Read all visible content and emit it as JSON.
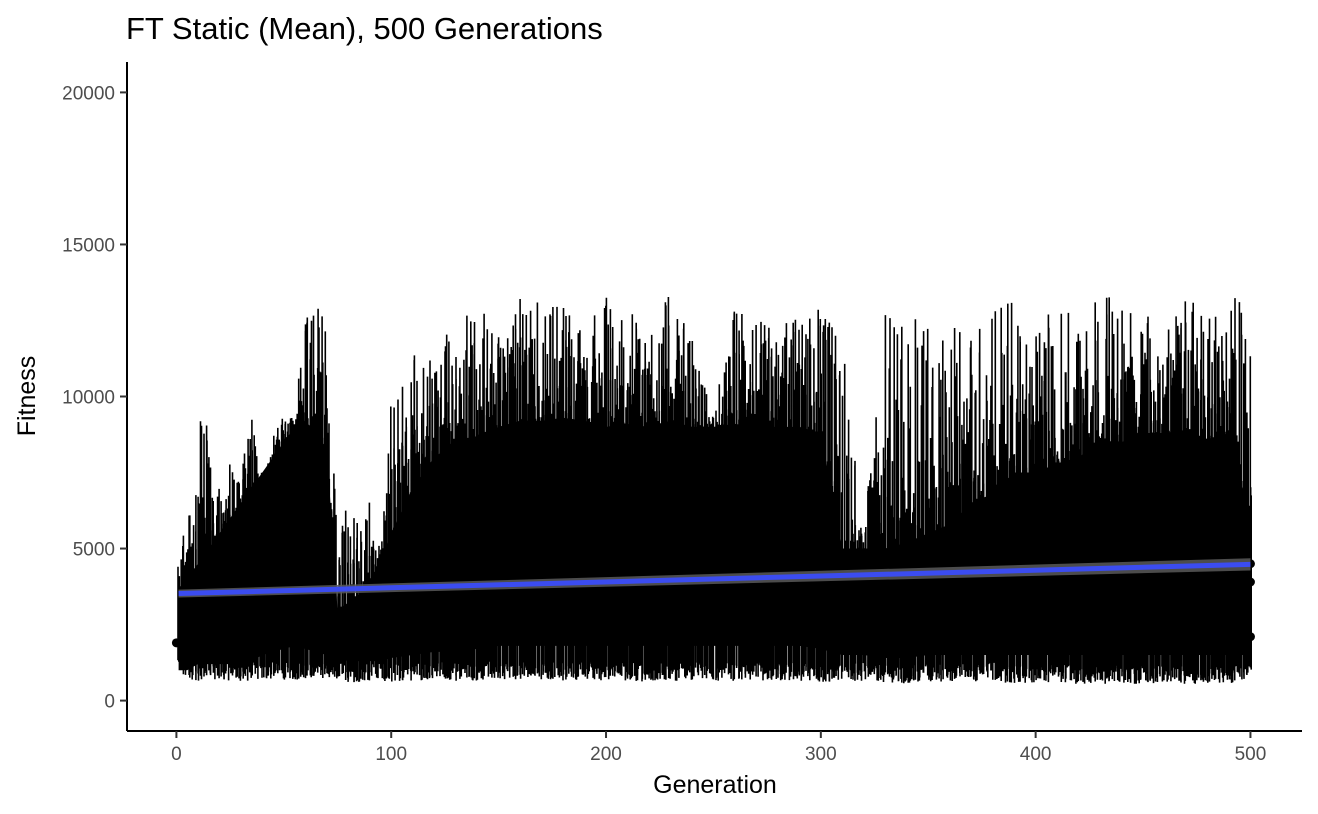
{
  "chart_data": {
    "type": "line",
    "title": "FT Static (Mean), 500 Generations",
    "xlabel": "Generation",
    "ylabel": "Fitness",
    "xlim": [
      -23,
      524
    ],
    "ylim": [
      -1000,
      21000
    ],
    "x_ticks": [
      0,
      100,
      200,
      300,
      400,
      500
    ],
    "y_ticks": [
      0,
      5000,
      10000,
      15000,
      20000
    ],
    "x_tick_labels": [
      "0",
      "100",
      "200",
      "300",
      "400",
      "500"
    ],
    "y_tick_labels": [
      "0",
      "5000",
      "10000",
      "15000",
      "20000"
    ],
    "grid": false,
    "legend": "none",
    "series": [
      {
        "kind": "fitness-range-per-generation",
        "color": "#000000",
        "x": [
          1,
          5,
          10,
          15,
          20,
          25,
          30,
          35,
          40,
          45,
          50,
          55,
          60,
          65,
          70,
          75,
          80,
          85,
          90,
          95,
          100,
          110,
          120,
          130,
          140,
          150,
          160,
          170,
          180,
          190,
          200,
          210,
          220,
          230,
          240,
          250,
          260,
          270,
          280,
          290,
          300,
          310,
          320,
          330,
          340,
          350,
          360,
          370,
          380,
          390,
          400,
          410,
          420,
          430,
          440,
          450,
          460,
          470,
          480,
          490,
          500
        ],
        "min": [
          900,
          700,
          650,
          650,
          600,
          650,
          600,
          650,
          700,
          700,
          650,
          700,
          650,
          650,
          600,
          650,
          600,
          600,
          650,
          650,
          600,
          650,
          700,
          650,
          650,
          700,
          650,
          700,
          650,
          700,
          650,
          650,
          600,
          650,
          650,
          650,
          650,
          650,
          650,
          650,
          600,
          650,
          650,
          600,
          550,
          600,
          600,
          600,
          650,
          550,
          550,
          600,
          550,
          550,
          550,
          550,
          550,
          550,
          550,
          550,
          700
        ],
        "max": [
          4600,
          7300,
          8900,
          10500,
          7000,
          7900,
          7300,
          10800,
          6000,
          9000,
          9400,
          9300,
          13400,
          13000,
          12800,
          6000,
          7500,
          6000,
          7000,
          5000,
          9700,
          11800,
          11300,
          12900,
          13200,
          12000,
          13300,
          13400,
          13200,
          12100,
          13400,
          12800,
          12700,
          13400,
          11900,
          9400,
          13000,
          12600,
          12300,
          12900,
          13100,
          12000,
          5500,
          13400,
          12900,
          12700,
          12000,
          13400,
          12800,
          13200,
          12000,
          13400,
          12900,
          13400,
          13200,
          13300,
          12800,
          13300,
          12900,
          13400,
          13300
        ],
        "band_upper": [
          3500,
          4000,
          4500,
          5000,
          5500,
          6000,
          6500,
          7000,
          7500,
          8000,
          8500,
          9000,
          9200,
          8800,
          8300,
          3000,
          3200,
          3500,
          4000,
          4500,
          5500,
          7000,
          8000,
          8500,
          8700,
          9000,
          9200,
          9200,
          9300,
          9200,
          9000,
          9100,
          9000,
          9200,
          9000,
          9000,
          9100,
          9000,
          9000,
          9000,
          8800,
          5000,
          5000,
          5000,
          5200,
          5500,
          5800,
          6500,
          6800,
          7500,
          7500,
          7800,
          8000,
          8500,
          8500,
          8800,
          8800,
          8900,
          8600,
          8800,
          6000
        ],
        "band_lower": [
          1000,
          1000,
          1200,
          1200,
          1200,
          1200,
          1200,
          1300,
          1500,
          1600,
          1700,
          1800,
          1700,
          1600,
          1500,
          1400,
          1300,
          1300,
          1300,
          1300,
          1400,
          1500,
          1600,
          1600,
          1700,
          1800,
          1800,
          1800,
          1800,
          1800,
          1800,
          1800,
          1800,
          1800,
          1800,
          1800,
          1800,
          1800,
          1800,
          1800,
          1700,
          1500,
          1500,
          1400,
          1400,
          1500,
          1500,
          1500,
          1500,
          1500,
          1500,
          1500,
          1500,
          1500,
          1500,
          1500,
          1500,
          1500,
          1500,
          1500,
          1500
        ]
      },
      {
        "kind": "points",
        "color": "#000000",
        "points": [
          [
            0,
            1900
          ],
          [
            500,
            4500
          ],
          [
            500,
            3900
          ],
          [
            500,
            2100
          ]
        ]
      },
      {
        "kind": "linear-trend",
        "color": "#3b4cf0",
        "band_color": "#595959",
        "x": [
          1,
          500
        ],
        "y": [
          3520,
          4480
        ],
        "ci_halfwidth": [
          130,
          200
        ]
      }
    ]
  }
}
